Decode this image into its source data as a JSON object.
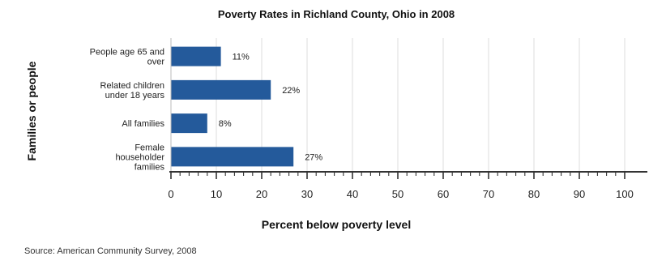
{
  "chart_data": {
    "type": "bar",
    "orientation": "horizontal",
    "title": "Poverty Rates in Richland County, Ohio in 2008",
    "xlabel": "Percent below poverty level",
    "ylabel": "Families or people",
    "categories": [
      [
        "People age 65 and",
        "over"
      ],
      [
        "Related children",
        "under 18 years"
      ],
      [
        "All families"
      ],
      [
        "Female",
        "householder",
        "families"
      ]
    ],
    "values": [
      11,
      22,
      8,
      27
    ],
    "data_labels": [
      "11%",
      "22%",
      "8%",
      "27%"
    ],
    "xlim": [
      0,
      100
    ],
    "ticks": [
      0,
      10,
      20,
      30,
      40,
      50,
      60,
      70,
      80,
      90,
      100
    ],
    "grid": true,
    "bar_color": "#245a9b",
    "source": "Source: American Community Survey, 2008"
  }
}
